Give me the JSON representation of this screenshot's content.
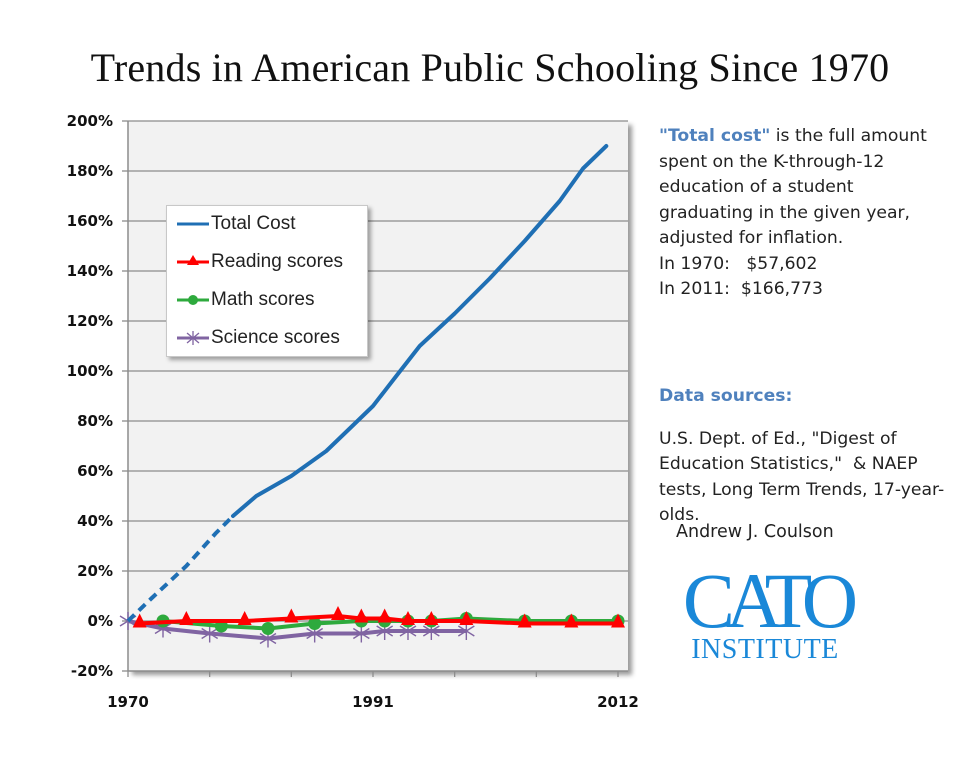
{
  "chart_data": {
    "type": "line",
    "title": "Trends in American Public Schooling Since 1970",
    "xlabel": "",
    "ylabel": "",
    "xlim": [
      1970,
      2012
    ],
    "ylim": [
      -20,
      200
    ],
    "x_tick_labels": [
      "1970",
      "1991",
      "2012"
    ],
    "x_minor_ticks": [
      1970,
      1977,
      1984,
      1991,
      1998,
      2005,
      2012
    ],
    "y_ticks": [
      -20,
      0,
      20,
      40,
      60,
      80,
      100,
      120,
      140,
      160,
      180,
      200
    ],
    "y_tick_labels": [
      "-20%",
      "0%",
      "20%",
      "40%",
      "60%",
      "80%",
      "100%",
      "120%",
      "140%",
      "160%",
      "180%",
      "200%"
    ],
    "grid": true,
    "legend_position": "top-left",
    "series": [
      {
        "name": "Total Cost",
        "color": "#1f6fb4",
        "marker": "none",
        "dashed_until": 1979,
        "x": [
          1970,
          1972,
          1975,
          1977.5,
          1979,
          1981,
          1984,
          1987,
          1989,
          1991,
          1993,
          1995,
          1998,
          2001,
          2004,
          2007,
          2009,
          2011
        ],
        "values": [
          0,
          9,
          22,
          35,
          42,
          50,
          58,
          68,
          77,
          86,
          98,
          110,
          123,
          137,
          152,
          168,
          181,
          190
        ]
      },
      {
        "name": "Reading scores",
        "color": "#ff0000",
        "marker": "triangle",
        "x": [
          1971,
          1975,
          1980,
          1984,
          1988,
          1990,
          1992,
          1994,
          1996,
          1999,
          2004,
          2008,
          2012
        ],
        "values": [
          -1,
          0,
          0,
          1,
          2,
          1,
          1,
          0,
          0,
          0,
          -1,
          -1,
          -1
        ]
      },
      {
        "name": "Math scores",
        "color": "#2eaa3d",
        "marker": "circle",
        "x": [
          1973,
          1978,
          1982,
          1986,
          1990,
          1992,
          1994,
          1996,
          1999,
          2004,
          2008,
          2012
        ],
        "values": [
          0,
          -2,
          -3,
          -1,
          0,
          0,
          0,
          0,
          1,
          0,
          0,
          0
        ]
      },
      {
        "name": "Science scores",
        "color": "#8064a2",
        "marker": "star",
        "x": [
          1970,
          1973,
          1977,
          1982,
          1986,
          1990,
          1992,
          1994,
          1996,
          1999
        ],
        "values": [
          0,
          -3,
          -5,
          -7,
          -5,
          -5,
          -4,
          -4,
          -4,
          -4
        ]
      }
    ]
  },
  "side_note": {
    "highlight": "\"Total cost\"",
    "text": " is the full amount spent on the K-through-12 education of a student graduating in the given year, adjusted for inflation.",
    "line_1970": "In 1970:   $57,602",
    "line_2011": "In 2011:  $166,773"
  },
  "sources": {
    "heading": "Data sources:",
    "text": "U.S. Dept. of Ed., \"Digest of Education Statistics,\"  & NAEP tests, Long Term Trends, 17-year-olds."
  },
  "author": "Andrew J. Coulson",
  "logo": {
    "top": "CATO",
    "bottom": "INSTITUTE",
    "color": "#1a88d8"
  },
  "colors": {
    "highlight_text": "#4f81bd",
    "negative_tick": "#e02020",
    "plot_bg": "#f2f2f2"
  }
}
